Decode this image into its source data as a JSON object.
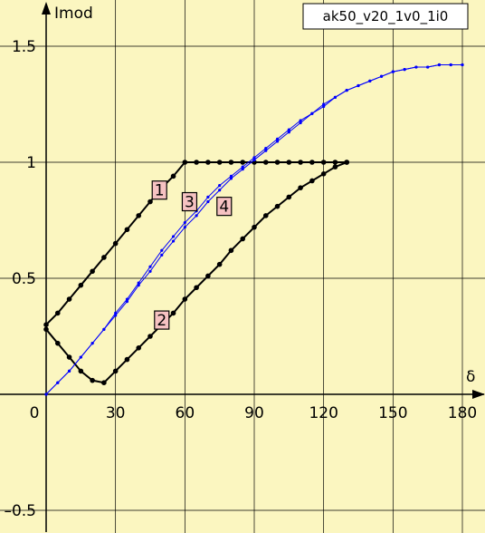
{
  "chart_data": {
    "type": "line",
    "title": "ak50_v20_1v0_1i0",
    "xlabel": "δ",
    "ylabel": "Imod",
    "xlim": [
      0,
      180
    ],
    "ylim": [
      -0.5,
      1.5
    ],
    "x_ticks": [
      {
        "value": 0,
        "label": "0"
      },
      {
        "value": 30,
        "label": "30"
      },
      {
        "value": 60,
        "label": "60"
      },
      {
        "value": 90,
        "label": "90"
      },
      {
        "value": 120,
        "label": "120"
      },
      {
        "value": 150,
        "label": "150"
      },
      {
        "value": 180,
        "label": "180"
      }
    ],
    "y_ticks": [
      {
        "value": -0.5,
        "label": "–0.5"
      },
      {
        "value": 0.5,
        "label": "0.5"
      },
      {
        "value": 1,
        "label": "1"
      },
      {
        "value": 1.5,
        "label": "1.5"
      }
    ],
    "grid": true,
    "legend": "top-right",
    "series": [
      {
        "label": "1",
        "color": "#000000",
        "points": [
          [
            0,
            0.3
          ],
          [
            5,
            0.35
          ],
          [
            10,
            0.41
          ],
          [
            15,
            0.47
          ],
          [
            20,
            0.53
          ],
          [
            25,
            0.59
          ],
          [
            30,
            0.65
          ],
          [
            35,
            0.71
          ],
          [
            40,
            0.77
          ],
          [
            45,
            0.83
          ],
          [
            50,
            0.89
          ],
          [
            55,
            0.94
          ],
          [
            60,
            1.0
          ],
          [
            65,
            1.0
          ],
          [
            70,
            1.0
          ],
          [
            75,
            1.0
          ],
          [
            80,
            1.0
          ],
          [
            85,
            1.0
          ],
          [
            90,
            1.0
          ],
          [
            95,
            1.0
          ],
          [
            100,
            1.0
          ],
          [
            105,
            1.0
          ],
          [
            110,
            1.0
          ],
          [
            115,
            1.0
          ],
          [
            120,
            1.0
          ],
          [
            125,
            1.0
          ],
          [
            130,
            1.0
          ]
        ]
      },
      {
        "label": "2",
        "color": "#000000",
        "points": [
          [
            0,
            0.28
          ],
          [
            5,
            0.22
          ],
          [
            10,
            0.16
          ],
          [
            15,
            0.1
          ],
          [
            20,
            0.06
          ],
          [
            25,
            0.05
          ],
          [
            30,
            0.1
          ],
          [
            35,
            0.15
          ],
          [
            40,
            0.2
          ],
          [
            45,
            0.25
          ],
          [
            50,
            0.3
          ],
          [
            55,
            0.35
          ],
          [
            60,
            0.41
          ],
          [
            65,
            0.46
          ],
          [
            70,
            0.51
          ],
          [
            75,
            0.56
          ],
          [
            80,
            0.62
          ],
          [
            85,
            0.67
          ],
          [
            90,
            0.72
          ],
          [
            95,
            0.77
          ],
          [
            100,
            0.81
          ],
          [
            105,
            0.85
          ],
          [
            110,
            0.89
          ],
          [
            115,
            0.92
          ],
          [
            120,
            0.95
          ],
          [
            125,
            0.98
          ],
          [
            130,
            1.0
          ]
        ]
      },
      {
        "label": "3",
        "color": "#0000ff",
        "points": [
          [
            0,
            0.0
          ],
          [
            5,
            0.05
          ],
          [
            10,
            0.1
          ],
          [
            15,
            0.16
          ],
          [
            20,
            0.22
          ],
          [
            25,
            0.28
          ],
          [
            30,
            0.35
          ],
          [
            35,
            0.41
          ],
          [
            40,
            0.48
          ],
          [
            45,
            0.55
          ],
          [
            50,
            0.62
          ],
          [
            55,
            0.68
          ],
          [
            60,
            0.74
          ],
          [
            65,
            0.79
          ],
          [
            70,
            0.85
          ],
          [
            75,
            0.9
          ],
          [
            80,
            0.94
          ],
          [
            85,
            0.98
          ],
          [
            90,
            1.02
          ],
          [
            95,
            1.06
          ],
          [
            100,
            1.1
          ],
          [
            105,
            1.14
          ],
          [
            110,
            1.18
          ],
          [
            115,
            1.21
          ],
          [
            120,
            1.25
          ],
          [
            125,
            1.28
          ],
          [
            130,
            1.31
          ],
          [
            135,
            1.33
          ],
          [
            140,
            1.35
          ],
          [
            145,
            1.37
          ],
          [
            150,
            1.39
          ],
          [
            155,
            1.4
          ],
          [
            160,
            1.41
          ],
          [
            165,
            1.41
          ],
          [
            170,
            1.42
          ],
          [
            175,
            1.42
          ],
          [
            180,
            1.42
          ]
        ]
      },
      {
        "label": "4",
        "color": "#0000ff",
        "points": [
          [
            0,
            0.0
          ],
          [
            5,
            0.05
          ],
          [
            10,
            0.1
          ],
          [
            15,
            0.16
          ],
          [
            20,
            0.22
          ],
          [
            25,
            0.28
          ],
          [
            30,
            0.34
          ],
          [
            35,
            0.4
          ],
          [
            40,
            0.47
          ],
          [
            45,
            0.53
          ],
          [
            50,
            0.6
          ],
          [
            55,
            0.66
          ],
          [
            60,
            0.72
          ],
          [
            65,
            0.77
          ],
          [
            70,
            0.83
          ],
          [
            75,
            0.88
          ],
          [
            80,
            0.93
          ],
          [
            85,
            0.97
          ],
          [
            90,
            1.01
          ],
          [
            95,
            1.05
          ],
          [
            100,
            1.09
          ],
          [
            105,
            1.13
          ],
          [
            110,
            1.17
          ],
          [
            115,
            1.21
          ],
          [
            120,
            1.24
          ],
          [
            125,
            1.28
          ],
          [
            130,
            1.31
          ],
          [
            135,
            1.33
          ],
          [
            140,
            1.35
          ],
          [
            145,
            1.37
          ],
          [
            150,
            1.39
          ],
          [
            155,
            1.4
          ],
          [
            160,
            1.41
          ],
          [
            165,
            1.41
          ],
          [
            170,
            1.42
          ],
          [
            175,
            1.42
          ],
          [
            180,
            1.42
          ]
        ]
      }
    ],
    "curve_labels": [
      {
        "text": "1",
        "x": 49,
        "y": 0.88
      },
      {
        "text": "2",
        "x": 50,
        "y": 0.32
      },
      {
        "text": "3",
        "x": 62,
        "y": 0.83
      },
      {
        "text": "4",
        "x": 77,
        "y": 0.81
      }
    ]
  },
  "colors": {
    "background": "#fbf6c0",
    "grid": "#000000",
    "label_box_fill": "#f6c2c2"
  }
}
